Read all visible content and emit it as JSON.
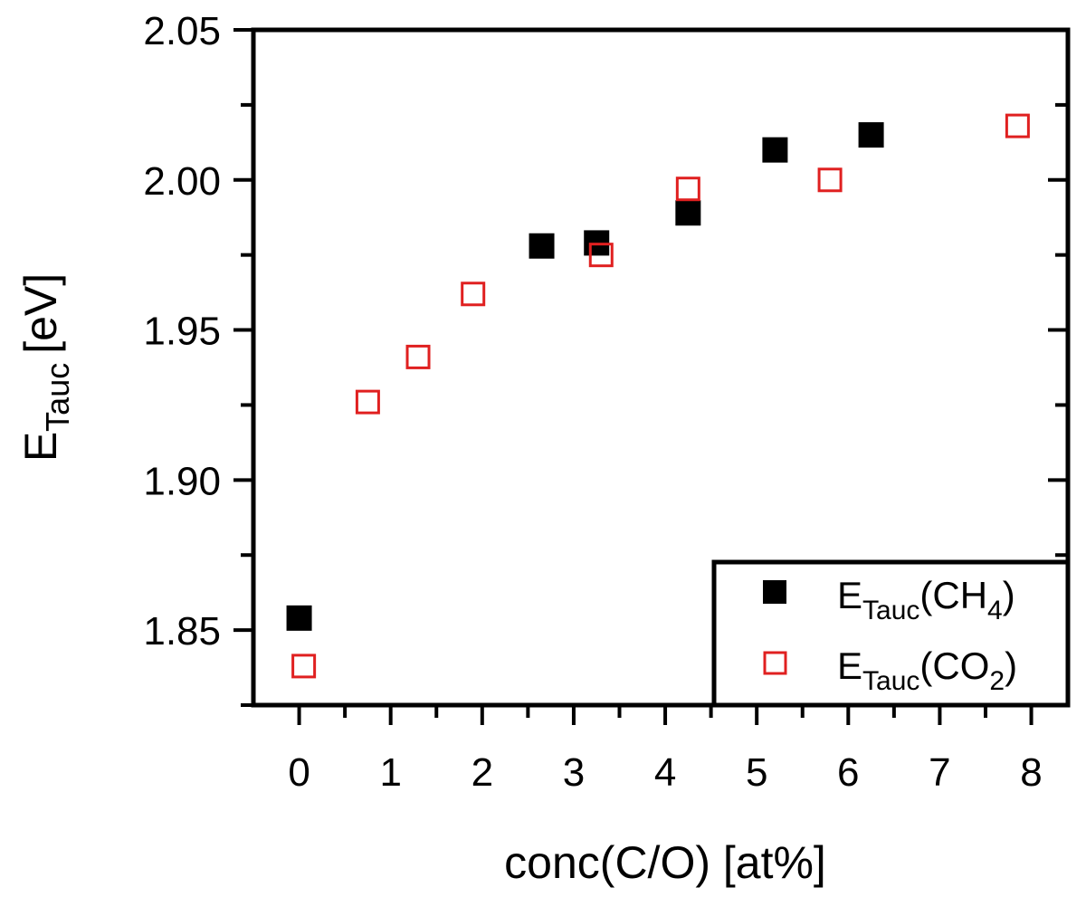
{
  "chart_data": {
    "type": "scatter",
    "xlabel": "conc(C/O) [at%]",
    "ylabel": {
      "main": "E",
      "sub": "Tauc",
      "unit": "[eV]"
    },
    "xlim": [
      -0.5,
      8.4
    ],
    "ylim": [
      1.825,
      2.05
    ],
    "xticks": [
      {
        "value": 0,
        "label": "0"
      },
      {
        "value": 1,
        "label": "1"
      },
      {
        "value": 2,
        "label": "2"
      },
      {
        "value": 3,
        "label": "3"
      },
      {
        "value": 4,
        "label": "4"
      },
      {
        "value": 5,
        "label": "5"
      },
      {
        "value": 6,
        "label": "6"
      },
      {
        "value": 7,
        "label": "7"
      },
      {
        "value": 8,
        "label": "8"
      }
    ],
    "x_minor_ticks": [
      0.5,
      1.5,
      2.5,
      3.5,
      4.5,
      5.5,
      6.5,
      7.5
    ],
    "yticks": [
      {
        "value": 1.85,
        "label": "1.85"
      },
      {
        "value": 1.9,
        "label": "1.90"
      },
      {
        "value": 1.95,
        "label": "1.95"
      },
      {
        "value": 2.0,
        "label": "2.00"
      },
      {
        "value": 2.05,
        "label": "2.05"
      }
    ],
    "y_minor_ticks": [
      1.825,
      1.875,
      1.925,
      1.975,
      2.025
    ],
    "grid": false,
    "legend_position": "bottom-right",
    "series": [
      {
        "name": "E_Tauc(CH4)",
        "legend": {
          "main": "E",
          "sub": "Tauc",
          "pre": "(CH",
          "subscript": "4",
          "post": ")"
        },
        "marker": "filled-square",
        "color": "#000000",
        "points": [
          {
            "x": 0.0,
            "y": 1.854
          },
          {
            "x": 2.65,
            "y": 1.978
          },
          {
            "x": 3.25,
            "y": 1.979
          },
          {
            "x": 4.25,
            "y": 1.989
          },
          {
            "x": 5.2,
            "y": 2.01
          },
          {
            "x": 6.25,
            "y": 2.015
          }
        ]
      },
      {
        "name": "E_Tauc(CO2)",
        "legend": {
          "main": "E",
          "sub": "Tauc",
          "pre": "(CO",
          "subscript": "2",
          "post": ")"
        },
        "marker": "open-square",
        "color": "#e02020",
        "points": [
          {
            "x": 0.05,
            "y": 1.838
          },
          {
            "x": 0.75,
            "y": 1.926
          },
          {
            "x": 1.3,
            "y": 1.941
          },
          {
            "x": 1.9,
            "y": 1.962
          },
          {
            "x": 3.3,
            "y": 1.975
          },
          {
            "x": 4.25,
            "y": 1.997
          },
          {
            "x": 5.8,
            "y": 2.0
          },
          {
            "x": 7.85,
            "y": 2.018
          }
        ]
      }
    ]
  }
}
